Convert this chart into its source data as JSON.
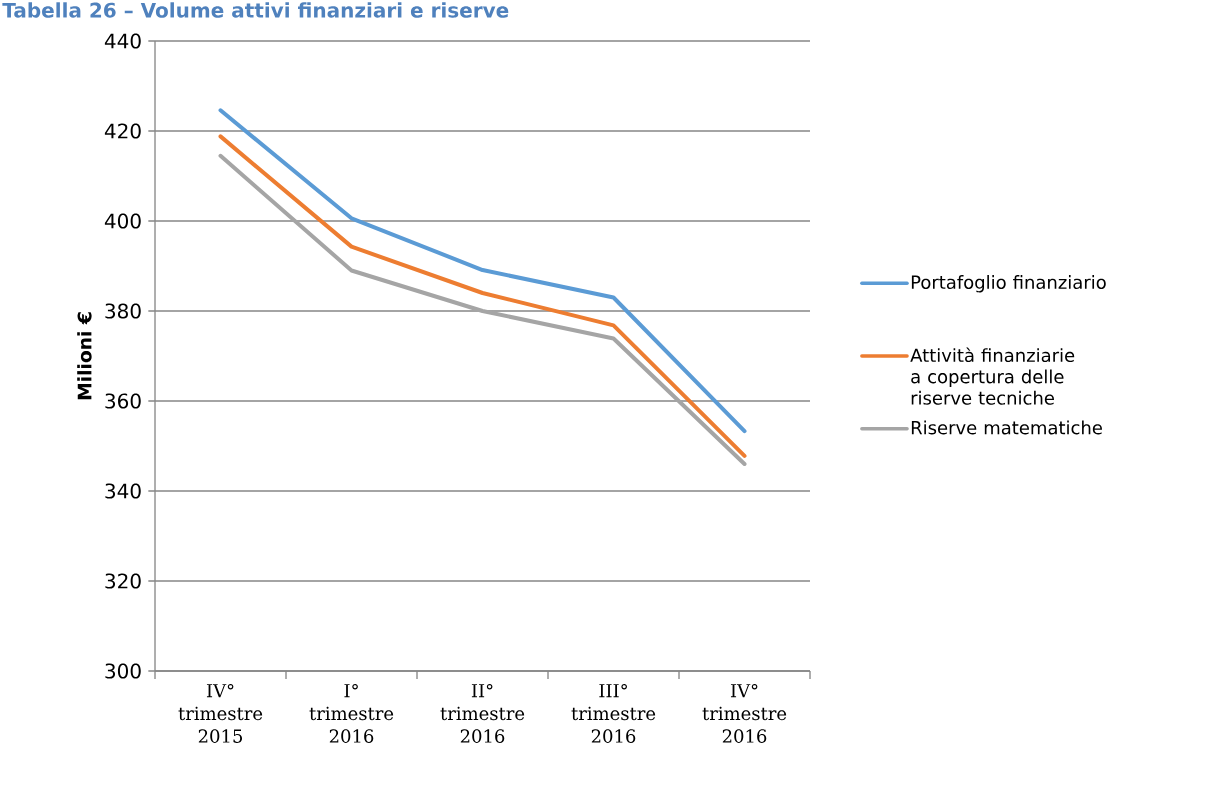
{
  "chart_data": {
    "type": "line",
    "title": "Tabella 26 – Volume attivi finanziari e riserve",
    "ylabel": "Milioni €",
    "categories": [
      "IV° trimestre 2015",
      "I° trimestre 2016",
      "II° trimestre 2016",
      "III° trimestre 2016",
      "IV° trimestre 2016"
    ],
    "series": [
      {
        "name": "Portafoglio finanziario",
        "color": "#5b9bd5",
        "values": [
          424.6,
          400.6,
          389.1,
          383.0,
          353.3
        ]
      },
      {
        "name": "Attività finanziarie a copertura delle riserve tecniche",
        "color": "#ed7d31",
        "values": [
          418.8,
          394.3,
          384.0,
          376.8,
          347.8
        ]
      },
      {
        "name": "Riserve matematiche",
        "color": "#a5a5a5",
        "values": [
          414.5,
          389.0,
          380.0,
          373.9,
          346.0
        ]
      }
    ],
    "ylim": [
      300,
      440
    ],
    "yticks": [
      300,
      320,
      340,
      360,
      380,
      400,
      420,
      440
    ],
    "grid": "y",
    "legend": "right",
    "marker": "none",
    "line_style": "solid"
  }
}
